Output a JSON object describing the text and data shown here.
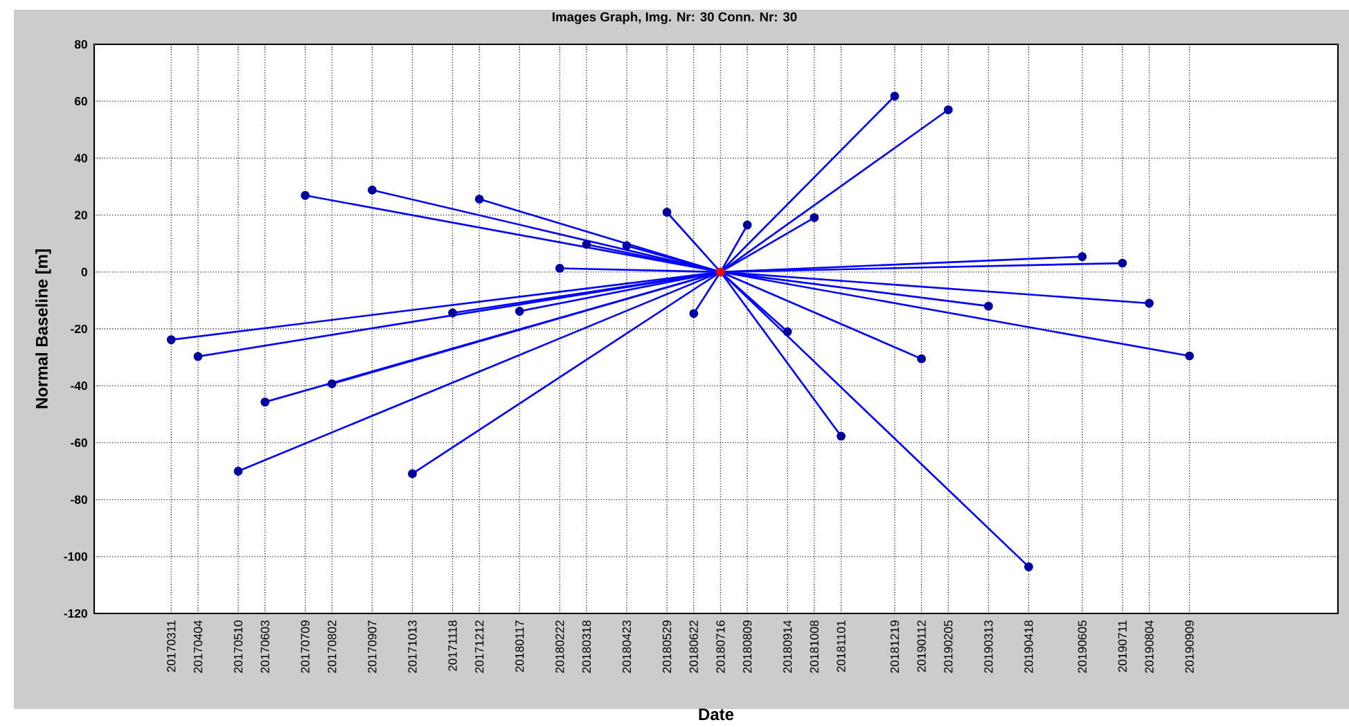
{
  "chart_data": {
    "type": "scatter",
    "title": "Images Graph, Img. Nr: 30 Conn. Nr: 30",
    "xlabel": "Date",
    "ylabel": "Normal Baseline [m]",
    "xlim": [
      "2017-01-01",
      "2020-01-20"
    ],
    "ylim": [
      -120,
      80
    ],
    "yticks": [
      -120,
      -100,
      -80,
      -60,
      -40,
      -20,
      0,
      20,
      40,
      60,
      80
    ],
    "xticks": [
      {
        "value": "2017-03-11",
        "label": "20170311"
      },
      {
        "value": "2017-04-04",
        "label": "20170404"
      },
      {
        "value": "2017-05-10",
        "label": "20170510"
      },
      {
        "value": "2017-06-03",
        "label": "20170603"
      },
      {
        "value": "2017-07-09",
        "label": "20170709"
      },
      {
        "value": "2017-08-02",
        "label": "20170802"
      },
      {
        "value": "2017-09-07",
        "label": "20170907"
      },
      {
        "value": "2017-10-13",
        "label": "20171013"
      },
      {
        "value": "2017-11-18",
        "label": "20171118"
      },
      {
        "value": "2017-12-12",
        "label": "20171212"
      },
      {
        "value": "2018-01-17",
        "label": "20180117"
      },
      {
        "value": "2018-02-22",
        "label": "20180222"
      },
      {
        "value": "2018-03-18",
        "label": "20180318"
      },
      {
        "value": "2018-04-23",
        "label": "20180423"
      },
      {
        "value": "2018-05-29",
        "label": "20180529"
      },
      {
        "value": "2018-06-22",
        "label": "20180622"
      },
      {
        "value": "2018-07-16",
        "label": "20180716"
      },
      {
        "value": "2018-08-09",
        "label": "20180809"
      },
      {
        "value": "2018-09-14",
        "label": "20180914"
      },
      {
        "value": "2018-10-08",
        "label": "20181008"
      },
      {
        "value": "2018-11-01",
        "label": "20181101"
      },
      {
        "value": "2018-12-19",
        "label": "20181219"
      },
      {
        "value": "2019-01-12",
        "label": "20190112"
      },
      {
        "value": "2019-02-05",
        "label": "20190205"
      },
      {
        "value": "2019-03-13",
        "label": "20190313"
      },
      {
        "value": "2019-04-18",
        "label": "20190418"
      },
      {
        "value": "2019-06-05",
        "label": "20190605"
      },
      {
        "value": "2019-07-11",
        "label": "20190711"
      },
      {
        "value": "2019-08-04",
        "label": "20190804"
      },
      {
        "value": "2019-09-09",
        "label": "20190909"
      }
    ],
    "grid": true,
    "series": [
      {
        "type": "line",
        "marker": "none",
        "color": "#0000ff",
        "x": [
          "2017-03-11",
          "2018-07-16"
        ],
        "values": [
          -23.8,
          0
        ]
      },
      {
        "type": "line",
        "marker": "none",
        "color": "#0000ff",
        "x": [
          "2017-04-04",
          "2018-07-16"
        ],
        "values": [
          -29.7,
          0
        ]
      },
      {
        "type": "line",
        "marker": "none",
        "color": "#0000ff",
        "x": [
          "2017-05-10",
          "2018-07-16"
        ],
        "values": [
          -70,
          0
        ]
      },
      {
        "type": "line",
        "marker": "none",
        "color": "#0000ff",
        "x": [
          "2017-06-03",
          "2018-07-16"
        ],
        "values": [
          -45.7,
          0
        ]
      },
      {
        "type": "line",
        "marker": "none",
        "color": "#0000ff",
        "x": [
          "2017-07-09",
          "2018-07-16"
        ],
        "values": [
          26.9,
          0
        ]
      },
      {
        "type": "line",
        "marker": "none",
        "color": "#0000ff",
        "x": [
          "2017-08-02",
          "2018-07-16"
        ],
        "values": [
          -39.3,
          0
        ]
      },
      {
        "type": "line",
        "marker": "none",
        "color": "#0000ff",
        "x": [
          "2017-09-07",
          "2018-07-16"
        ],
        "values": [
          28.8,
          0
        ]
      },
      {
        "type": "line",
        "marker": "none",
        "color": "#0000ff",
        "x": [
          "2017-10-13",
          "2018-07-16"
        ],
        "values": [
          -70.9,
          0
        ]
      },
      {
        "type": "line",
        "marker": "none",
        "color": "#0000ff",
        "x": [
          "2017-11-18",
          "2018-07-16"
        ],
        "values": [
          -14.4,
          0
        ]
      },
      {
        "type": "line",
        "marker": "none",
        "color": "#0000ff",
        "x": [
          "2017-12-12",
          "2018-07-16"
        ],
        "values": [
          25.6,
          0
        ]
      },
      {
        "type": "line",
        "marker": "none",
        "color": "#0000ff",
        "x": [
          "2018-01-17",
          "2018-07-16"
        ],
        "values": [
          -13.8,
          0
        ]
      },
      {
        "type": "line",
        "marker": "none",
        "color": "#0000ff",
        "x": [
          "2018-02-22",
          "2018-07-16"
        ],
        "values": [
          1.3,
          0
        ]
      },
      {
        "type": "line",
        "marker": "none",
        "color": "#0000ff",
        "x": [
          "2018-03-18",
          "2018-07-16"
        ],
        "values": [
          9.7,
          0
        ]
      },
      {
        "type": "line",
        "marker": "none",
        "color": "#0000ff",
        "x": [
          "2018-04-23",
          "2018-07-16"
        ],
        "values": [
          9.2,
          0
        ]
      },
      {
        "type": "line",
        "marker": "none",
        "color": "#0000ff",
        "x": [
          "2018-05-29",
          "2018-07-16"
        ],
        "values": [
          21,
          0
        ]
      },
      {
        "type": "line",
        "marker": "none",
        "color": "#0000ff",
        "x": [
          "2018-06-22",
          "2018-07-16"
        ],
        "values": [
          -14.6,
          0
        ]
      },
      {
        "type": "line",
        "marker": "none",
        "color": "#0000ff",
        "x": [
          "2018-08-09",
          "2018-07-16"
        ],
        "values": [
          16.5,
          0
        ]
      },
      {
        "type": "line",
        "marker": "none",
        "color": "#0000ff",
        "x": [
          "2018-09-14",
          "2018-07-16"
        ],
        "values": [
          -21,
          0
        ]
      },
      {
        "type": "line",
        "marker": "none",
        "color": "#0000ff",
        "x": [
          "2018-10-08",
          "2018-07-16"
        ],
        "values": [
          19.1,
          0
        ]
      },
      {
        "type": "line",
        "marker": "none",
        "color": "#0000ff",
        "x": [
          "2018-11-01",
          "2018-07-16"
        ],
        "values": [
          -57.7,
          0
        ]
      },
      {
        "type": "line",
        "marker": "none",
        "color": "#0000ff",
        "x": [
          "2018-12-19",
          "2018-07-16"
        ],
        "values": [
          61.8,
          0
        ]
      },
      {
        "type": "line",
        "marker": "none",
        "color": "#0000ff",
        "x": [
          "2019-01-12",
          "2018-07-16"
        ],
        "values": [
          -30.5,
          0
        ]
      },
      {
        "type": "line",
        "marker": "none",
        "color": "#0000ff",
        "x": [
          "2019-02-05",
          "2018-07-16"
        ],
        "values": [
          57,
          0
        ]
      },
      {
        "type": "line",
        "marker": "none",
        "color": "#0000ff",
        "x": [
          "2019-03-13",
          "2018-07-16"
        ],
        "values": [
          -12,
          0
        ]
      },
      {
        "type": "line",
        "marker": "none",
        "color": "#0000ff",
        "x": [
          "2019-04-18",
          "2018-07-16"
        ],
        "values": [
          -103.6,
          0
        ]
      },
      {
        "type": "line",
        "marker": "none",
        "color": "#0000ff",
        "x": [
          "2019-06-05",
          "2018-07-16"
        ],
        "values": [
          5.4,
          0
        ]
      },
      {
        "type": "line",
        "marker": "none",
        "color": "#0000ff",
        "x": [
          "2019-07-11",
          "2018-07-16"
        ],
        "values": [
          3.1,
          0
        ]
      },
      {
        "type": "line",
        "marker": "none",
        "color": "#0000ff",
        "x": [
          "2019-08-04",
          "2018-07-16"
        ],
        "values": [
          -11,
          0
        ]
      },
      {
        "type": "line",
        "marker": "none",
        "color": "#0000ff",
        "x": [
          "2019-09-09",
          "2018-07-16"
        ],
        "values": [
          -29.5,
          0
        ]
      },
      {
        "marker": "circle",
        "x": [
          "2017-03-11",
          "2017-04-04",
          "2017-05-10",
          "2017-06-03",
          "2017-07-09",
          "2017-08-02",
          "2017-09-07",
          "2017-10-13",
          "2017-11-18",
          "2017-12-12",
          "2018-01-17",
          "2018-02-22",
          "2018-03-18",
          "2018-04-23",
          "2018-05-29",
          "2018-06-22",
          "2018-07-16",
          "2018-08-09",
          "2018-09-14",
          "2018-10-08",
          "2018-11-01",
          "2018-12-19",
          "2019-01-12",
          "2019-02-05",
          "2019-03-13",
          "2019-04-18",
          "2019-06-05",
          "2019-07-11",
          "2019-08-04",
          "2019-09-09"
        ],
        "values": [
          -23.8,
          -29.7,
          -70,
          -45.7,
          26.9,
          -39.3,
          28.8,
          -70.9,
          -14.4,
          25.6,
          -13.8,
          1.3,
          9.7,
          9.2,
          21,
          -14.6,
          0,
          16.5,
          -21,
          19.1,
          -57.7,
          61.8,
          -30.5,
          57,
          -12,
          -103.6,
          5.4,
          3.1,
          -11,
          -29.5
        ],
        "colors": [
          "#0000a0",
          "#0000a0",
          "#0000a0",
          "#0000a0",
          "#0000a0",
          "#0000a0",
          "#0000a0",
          "#0000a0",
          "#0000a0",
          "#0000a0",
          "#0000a0",
          "#0000a0",
          "#0000a0",
          "#0000a0",
          "#0000a0",
          "#0000a0",
          "#ff0000",
          "#0000a0",
          "#0000a0",
          "#0000a0",
          "#0000a0",
          "#0000a0",
          "#0000a0",
          "#0000a0",
          "#0000a0",
          "#0000a0",
          "#0000a0",
          "#0000a0",
          "#0000a0",
          "#0000a0"
        ]
      }
    ]
  }
}
